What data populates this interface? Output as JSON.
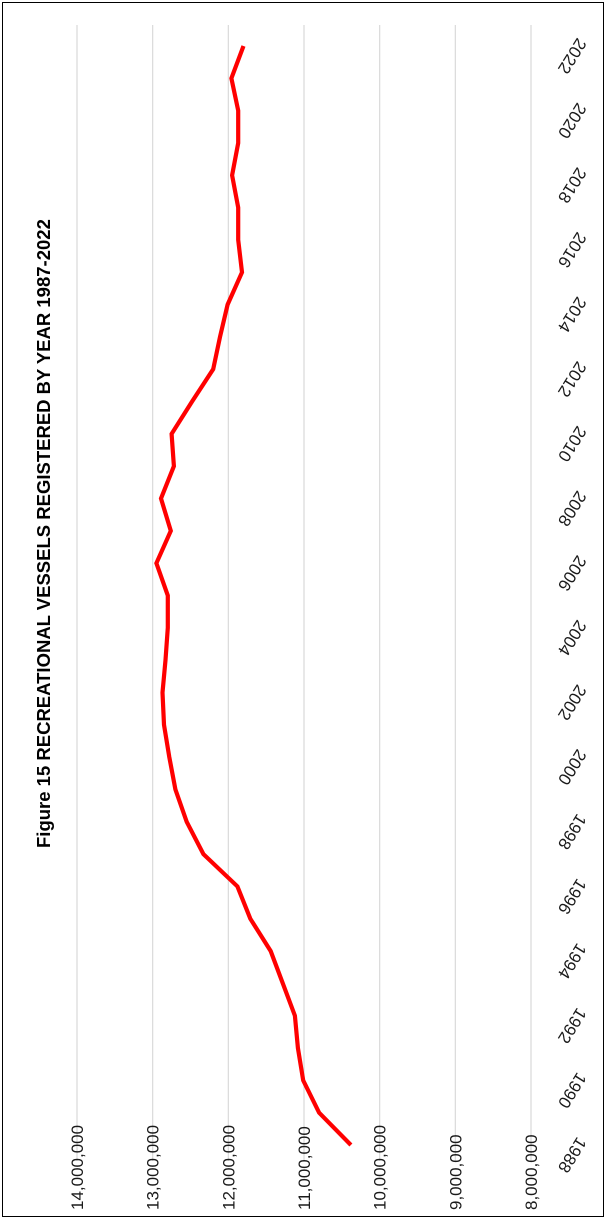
{
  "chart_data": {
    "type": "line",
    "title": "Figure 15 RECREATIONAL  VESSELS REGISTERED BY YEAR 1987-2022",
    "xlabel": "",
    "ylabel": "",
    "x_tick_labels": [
      "1988",
      "1990",
      "1992",
      "1994",
      "1996",
      "1998",
      "2000",
      "2002",
      "2004",
      "2006",
      "2008",
      "2010",
      "2012",
      "2014",
      "2016",
      "2018",
      "2020",
      "2022"
    ],
    "x_tick_values": [
      1988,
      1990,
      1992,
      1994,
      1996,
      1998,
      2000,
      2002,
      2004,
      2006,
      2008,
      2010,
      2012,
      2014,
      2016,
      2018,
      2020,
      2022
    ],
    "y_tick_labels": [
      "14,000,000",
      "13,000,000",
      "12,000,000",
      "11,000,000",
      "10,000,000",
      "9,000,000",
      "8,000,000"
    ],
    "y_tick_values": [
      14000000,
      13000000,
      12000000,
      11000000,
      10000000,
      9000000,
      8000000
    ],
    "xlim": [
      1987,
      2023
    ],
    "ylim": [
      7500000,
      14500000
    ],
    "grid": true,
    "legend": "none",
    "series": [
      {
        "color": "#ff0000",
        "x": [
          1988,
          1989,
          1990,
          1991,
          1992,
          1993,
          1994,
          1995,
          1996,
          1997,
          1998,
          1999,
          2000,
          2001,
          2002,
          2003,
          2004,
          2005,
          2006,
          2007,
          2008,
          2009,
          2010,
          2011,
          2012,
          2013,
          2014,
          2015,
          2016,
          2017,
          2018,
          2019,
          2020,
          2021,
          2022
        ],
        "values": [
          10380000,
          10800000,
          11010000,
          11080000,
          11120000,
          11280000,
          11440000,
          11710000,
          11880000,
          12330000,
          12550000,
          12700000,
          12780000,
          12850000,
          12870000,
          12830000,
          12800000,
          12800000,
          12950000,
          12760000,
          12890000,
          12720000,
          12750000,
          12480000,
          12200000,
          12110000,
          12010000,
          11820000,
          11870000,
          11870000,
          11950000,
          11870000,
          11870000,
          11960000,
          11800000
        ]
      }
    ]
  }
}
